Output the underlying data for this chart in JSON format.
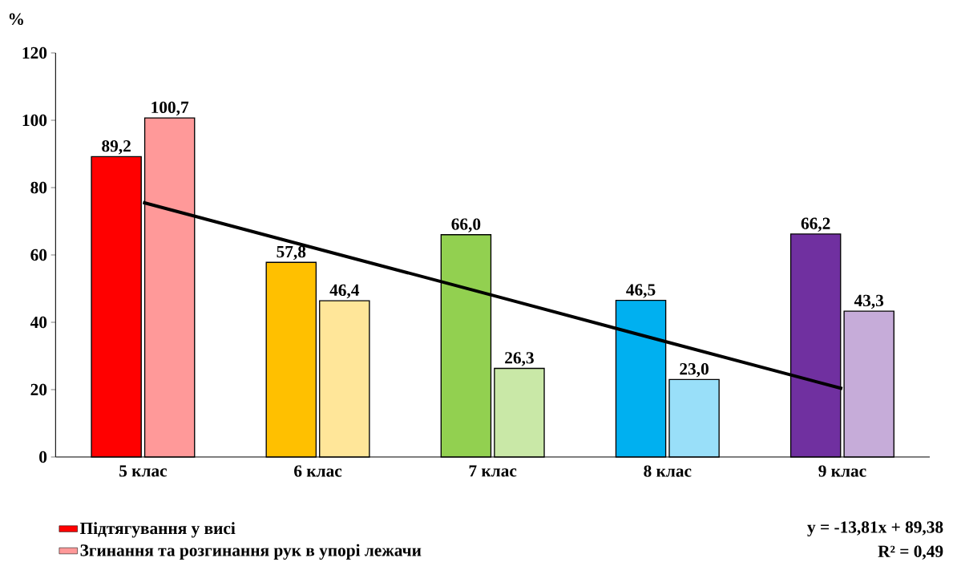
{
  "chart_data": {
    "type": "bar",
    "ylabel": "%",
    "categories": [
      "5 клас",
      "6 клас",
      "7 клас",
      "8 клас",
      "9 клас"
    ],
    "series": [
      {
        "name": "Підтягування у висі",
        "colors": [
          "#ff0000",
          "#ffc000",
          "#92d050",
          "#00b0f0",
          "#7030a0"
        ],
        "values": [
          89.2,
          57.8,
          66.0,
          46.5,
          66.2
        ],
        "value_labels": [
          "89,2",
          "57,8",
          "66,0",
          "46,5",
          "66,2"
        ]
      },
      {
        "name": "Згинання та розгинання рук в упорі лежачи",
        "colors": [
          "#ff9999",
          "#ffe699",
          "#c9e8a7",
          "#99dff9",
          "#c6acd9"
        ],
        "values": [
          100.7,
          46.4,
          26.3,
          23.0,
          43.3
        ],
        "value_labels": [
          "100,7",
          "46,4",
          "26,3",
          "23,0",
          "43,3"
        ]
      },
      {
        "type": "line",
        "color": "#000000",
        "values": [
          75.6,
          61.8,
          48.0,
          34.1,
          20.3
        ]
      }
    ],
    "ylim": [
      0,
      120
    ],
    "yticks": [
      0,
      20,
      40,
      60,
      80,
      100,
      120
    ],
    "legend": "bottom left",
    "annotations": [
      "y = -13,81x + 89,38",
      "R² = 0,49"
    ]
  }
}
